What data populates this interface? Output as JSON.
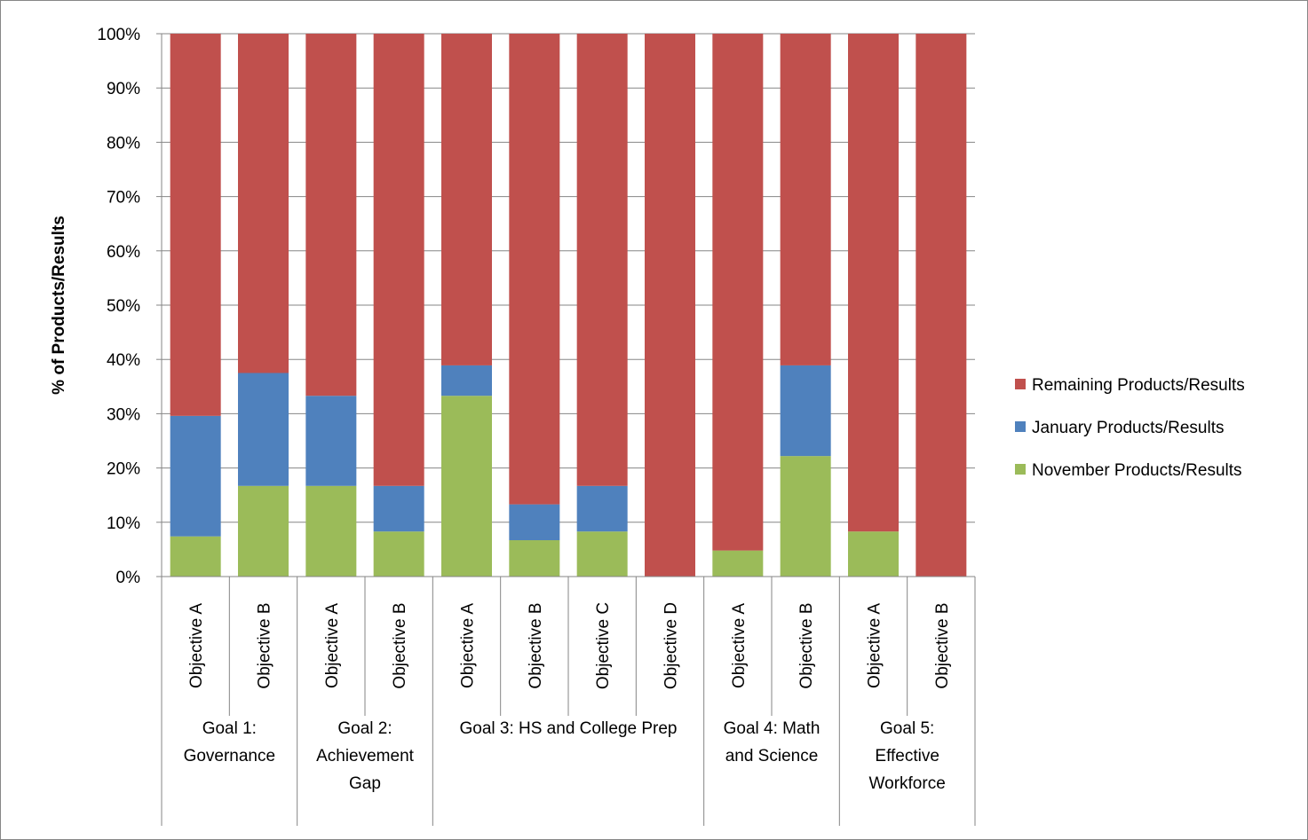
{
  "chart_data": {
    "type": "bar",
    "stacked": true,
    "percent_stacked": true,
    "ylabel": "% of Products/Results",
    "xlabel": "",
    "ylim": [
      0,
      100
    ],
    "y_ticks": [
      "0%",
      "10%",
      "20%",
      "30%",
      "40%",
      "50%",
      "60%",
      "70%",
      "80%",
      "90%",
      "100%"
    ],
    "grid": true,
    "legend_position": "right",
    "groups": [
      {
        "label": "Goal 1: Governance",
        "lines": [
          "Goal 1:",
          "Governance"
        ],
        "categories": [
          "Objective A",
          "Objective B"
        ]
      },
      {
        "label": "Goal 2: Achievement Gap",
        "lines": [
          "Goal 2:",
          "Achievement",
          "Gap"
        ],
        "categories": [
          "Objective A",
          "Objective B"
        ]
      },
      {
        "label": "Goal 3: HS and College Prep",
        "lines": [
          "Goal 3: HS and College Prep"
        ],
        "categories": [
          "Objective A",
          "Objective B",
          "Objective C",
          "Objective D"
        ]
      },
      {
        "label": "Goal 4: Math and Science",
        "lines": [
          "Goal 4: Math",
          "and Science"
        ],
        "categories": [
          "Objective A",
          "Objective B"
        ]
      },
      {
        "label": "Goal 5: Effective Workforce",
        "lines": [
          "Goal 5:",
          "Effective",
          "Workforce"
        ],
        "categories": [
          "Objective A",
          "Objective B"
        ]
      }
    ],
    "series": [
      {
        "name": "November Products/Results",
        "color": "#9BBB59",
        "values": [
          7.4,
          16.7,
          16.7,
          8.3,
          33.3,
          6.7,
          8.3,
          0,
          4.8,
          22.2,
          8.3,
          0
        ]
      },
      {
        "name": "January Products/Results",
        "color": "#4F81BD",
        "values": [
          22.2,
          20.8,
          16.6,
          8.4,
          5.6,
          6.6,
          8.4,
          0,
          0,
          16.7,
          0,
          0
        ]
      },
      {
        "name": "Remaining Products/Results",
        "color": "#C0504D",
        "values": [
          70.4,
          62.5,
          66.7,
          83.3,
          61.1,
          86.7,
          83.3,
          100,
          95.2,
          61.1,
          91.7,
          100
        ]
      }
    ],
    "legend_order": [
      "Remaining Products/Results",
      "January Products/Results",
      "November Products/Results"
    ]
  }
}
